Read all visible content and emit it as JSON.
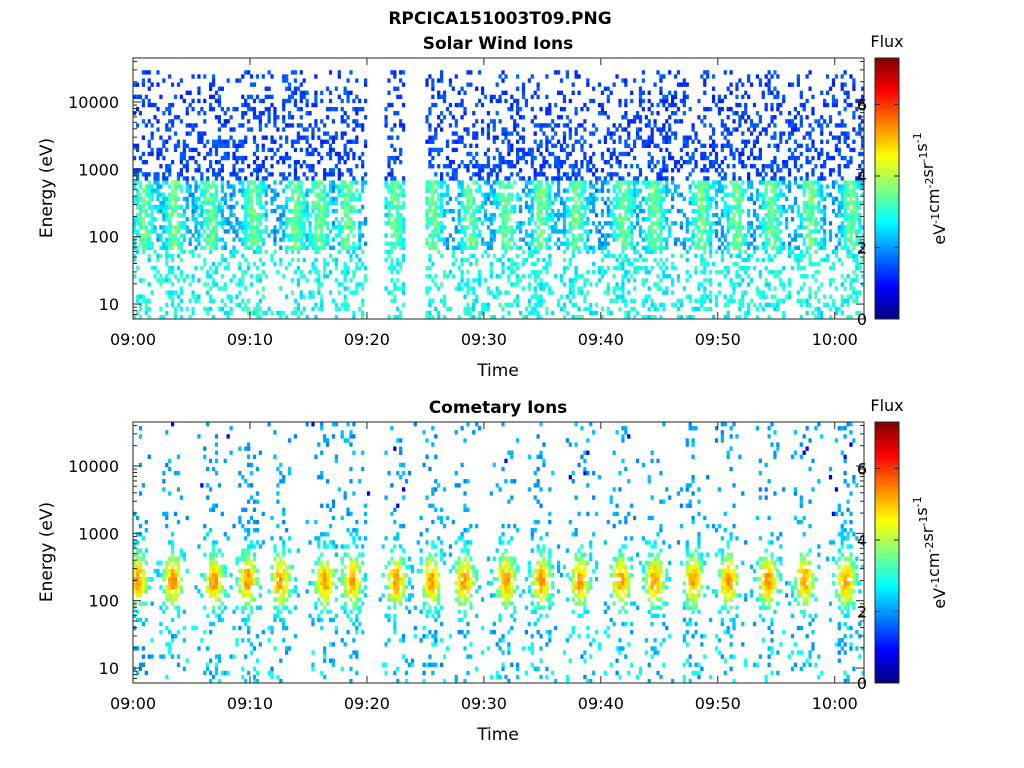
{
  "figure_title": "RPCICA151003T09.PNG",
  "colorbar": {
    "title": "Flux",
    "unit_parts": [
      "eV",
      "-1",
      "cm",
      "-2",
      "sr",
      "-1",
      "s",
      "-1"
    ],
    "ticks": [
      0,
      2,
      4,
      6
    ],
    "range": [
      0,
      7.3
    ]
  },
  "chart_data": [
    {
      "type": "heatmap",
      "title": "Solar Wind Ions",
      "xlabel": "Time",
      "ylabel": "Energy (eV)",
      "x_ticks": [
        "09:00",
        "09:10",
        "09:20",
        "09:30",
        "09:40",
        "09:50",
        "10:00"
      ],
      "x_range_minutes": [
        0,
        62.5
      ],
      "y_scale": "log",
      "y_ticks": [
        "10",
        "100",
        "1000",
        "10000"
      ],
      "y_range": [
        6,
        45000
      ],
      "colorbar_label": "Flux",
      "data_gap_minutes": [
        [
          19.8,
          21.3
        ],
        [
          23.2,
          24.8
        ]
      ],
      "bursts_minutes": [
        0.8,
        3.4,
        6.5,
        10.2,
        13.8,
        15.8,
        18.3,
        22.3,
        25.5,
        28.8,
        31.8,
        34.8,
        37.8,
        41.8,
        44.5,
        48.5,
        51.5,
        54.5,
        57.8,
        61.3
      ],
      "distribution": "solar wind flux concentrated 60-600 eV, scattered counts up to ~30000 eV"
    },
    {
      "type": "heatmap",
      "title": "Cometary Ions",
      "xlabel": "Time",
      "ylabel": "Energy (eV)",
      "x_ticks": [
        "09:00",
        "09:10",
        "09:20",
        "09:30",
        "09:40",
        "09:50",
        "10:00"
      ],
      "x_range_minutes": [
        0,
        62.5
      ],
      "y_scale": "log",
      "y_ticks": [
        "10",
        "100",
        "1000",
        "10000"
      ],
      "y_range": [
        6,
        45000
      ],
      "colorbar_label": "Flux",
      "bursts_minutes": [
        0.3,
        3.3,
        6.8,
        9.7,
        12.5,
        16.3,
        18.6,
        22.4,
        25.4,
        28.2,
        31.8,
        34.8,
        38.1,
        41.6,
        44.5,
        47.8,
        50.8,
        54.2,
        57.3,
        60.8
      ],
      "distribution": "cometary ion bursts centred ~150-250 eV, peak flux ~5, extending 40-1500 eV"
    }
  ]
}
